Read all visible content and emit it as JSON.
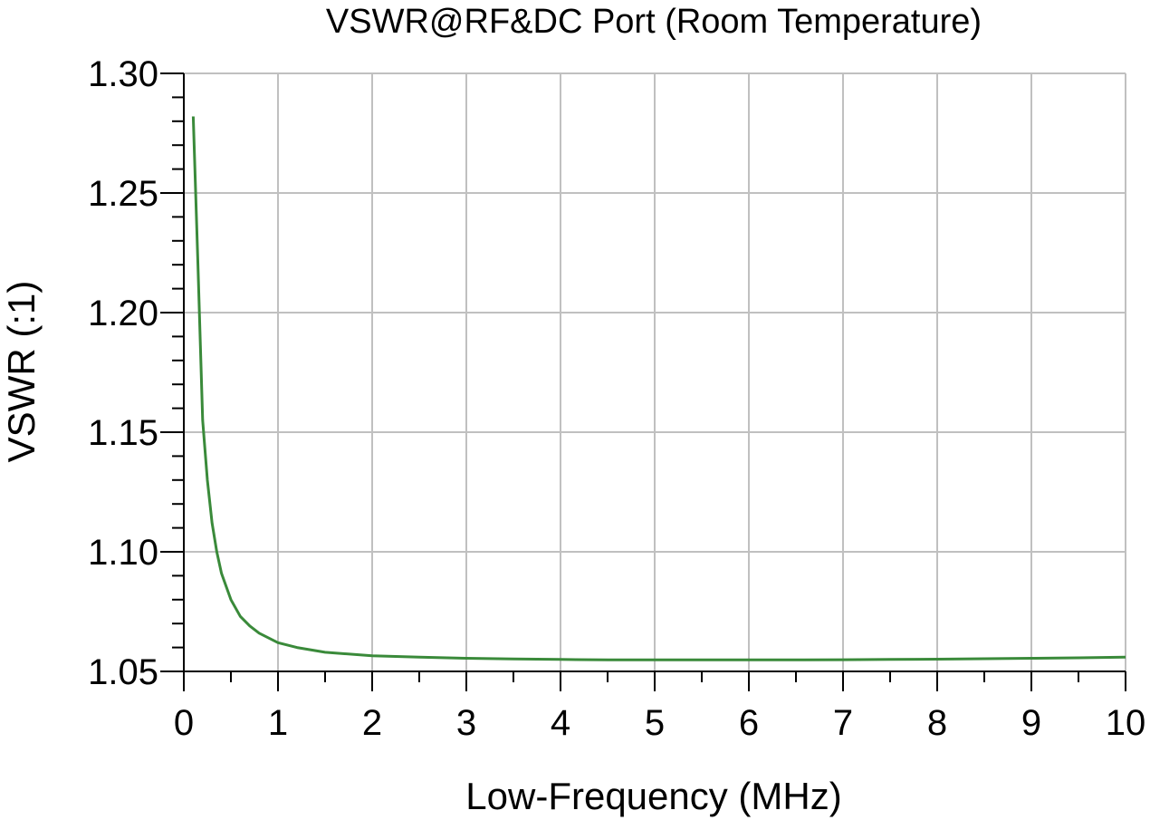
{
  "chart_data": {
    "type": "line",
    "title": "VSWR@RF&DC Port (Room Temperature)",
    "xlabel": "Low-Frequency (MHz)",
    "ylabel": "VSWR (:1)",
    "xlim": [
      0,
      10
    ],
    "ylim": [
      1.05,
      1.3
    ],
    "x_ticks": [
      "0",
      "1",
      "2",
      "3",
      "4",
      "5",
      "6",
      "7",
      "8",
      "9",
      "10"
    ],
    "y_ticks": [
      "1.05",
      "1.10",
      "1.15",
      "1.20",
      "1.25",
      "1.30"
    ],
    "grid": true,
    "line_color": "#3a8a3a",
    "series": [
      {
        "x": [
          0.1,
          0.15,
          0.2,
          0.25,
          0.3,
          0.35,
          0.4,
          0.5,
          0.6,
          0.7,
          0.8,
          1.0,
          1.2,
          1.5,
          2.0,
          2.5,
          3.0,
          3.5,
          4.0,
          4.5,
          5.0,
          5.5,
          6.0,
          6.5,
          7.0,
          7.5,
          8.0,
          8.5,
          9.0,
          9.5,
          10.0
        ],
        "y": [
          1.282,
          1.22,
          1.155,
          1.13,
          1.112,
          1.1,
          1.091,
          1.08,
          1.073,
          1.069,
          1.066,
          1.062,
          1.06,
          1.058,
          1.0565,
          1.056,
          1.0555,
          1.0552,
          1.055,
          1.0548,
          1.0548,
          1.0548,
          1.0548,
          1.0548,
          1.0549,
          1.055,
          1.0551,
          1.0553,
          1.0555,
          1.0557,
          1.056
        ]
      }
    ]
  }
}
